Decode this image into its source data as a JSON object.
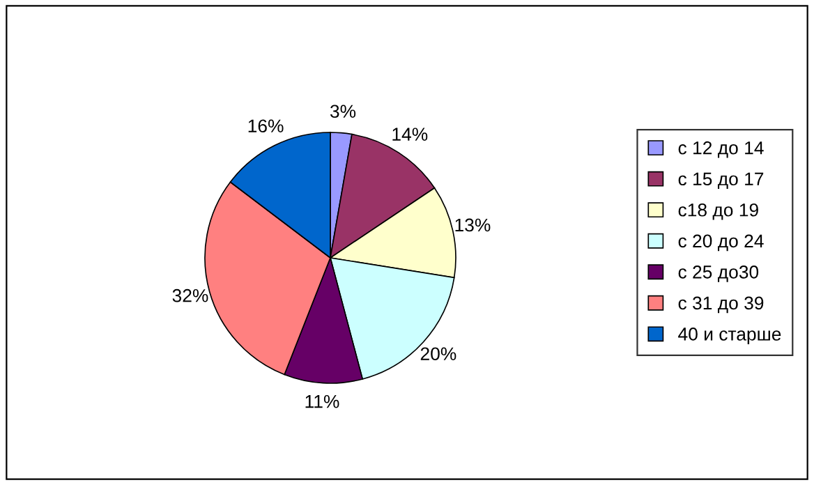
{
  "chart_data": {
    "type": "pie",
    "categories": [
      "с 12 до 14",
      "с 15 до 17",
      "с18 до 19",
      "с 20 до 24",
      "с 25 до30",
      "с 31 до 39",
      "40 и старше"
    ],
    "values": [
      3,
      14,
      13,
      20,
      11,
      32,
      16
    ],
    "value_labels": [
      "3%",
      "14%",
      "13%",
      "20%",
      "11%",
      "32%",
      "16%"
    ],
    "colors": [
      "#9999ff",
      "#993366",
      "#ffffcc",
      "#ccffff",
      "#660066",
      "#ff8080",
      "#0066cc"
    ],
    "legend": "right"
  }
}
